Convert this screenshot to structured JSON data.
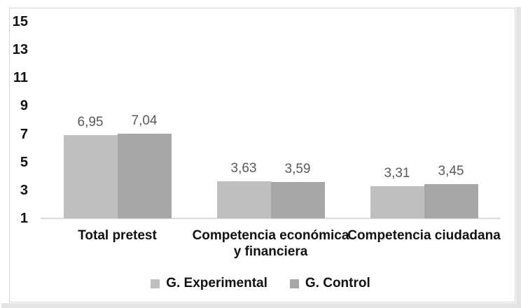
{
  "page": {
    "background": "#FFFFFF",
    "gutter_color": "#E3E3E3",
    "frame_border_color": "#D6D6D6"
  },
  "chart_data": {
    "type": "bar",
    "title": "",
    "categories": [
      "Total pretest",
      "Competencia económica y financiera",
      "Competencia ciudadana"
    ],
    "categories_wrapped": [
      [
        "Total pretest"
      ],
      [
        "Competencia económica",
        "y financiera"
      ],
      [
        "Competencia ciudadana"
      ]
    ],
    "series": [
      {
        "name": "G. Experimental",
        "color": "#BFBFBF",
        "values": [
          6.95,
          3.63,
          3.31
        ],
        "labels": [
          "6,95",
          "3,63",
          "3,31"
        ]
      },
      {
        "name": "G. Control",
        "color": "#A6A6A6",
        "values": [
          7.04,
          3.59,
          3.45
        ],
        "labels": [
          "7,04",
          "3,59",
          "3,45"
        ]
      }
    ],
    "y_axis": {
      "min": 1,
      "max": 15,
      "tick_step": 2,
      "ticks": [
        15,
        13,
        11,
        9,
        7,
        5,
        3,
        1
      ]
    },
    "gridlines": false,
    "legend_position": "bottom",
    "plot_background": "#FFFFFF",
    "axis_line_color": "#DCDCDC",
    "data_label_color": "#595959",
    "text_color": "#111111"
  }
}
